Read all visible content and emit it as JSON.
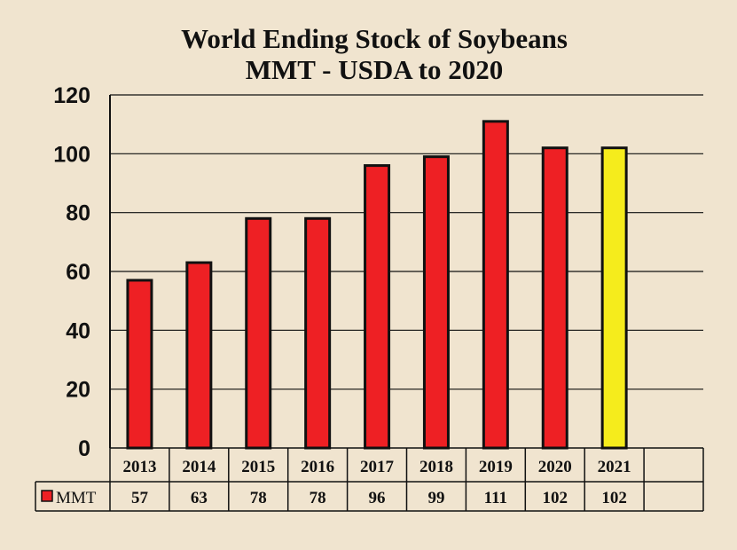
{
  "chart_data": {
    "type": "bar",
    "title": "World Ending Stock of Soybeans",
    "subtitle": "MMT - USDA to 2020",
    "categories": [
      "2013",
      "2014",
      "2015",
      "2016",
      "2017",
      "2018",
      "2019",
      "2020",
      "2021"
    ],
    "series": [
      {
        "name": "MMT",
        "values": [
          57,
          63,
          78,
          78,
          96,
          99,
          111,
          102,
          102
        ],
        "color": "#ee2024",
        "highlight_color": "#f5ec1c",
        "highlight_index": 8
      }
    ],
    "ylim": [
      0,
      120
    ],
    "yticks": [
      0,
      20,
      40,
      60,
      80,
      100,
      120
    ],
    "grid": true,
    "legend": "data-table-left",
    "data_table": true
  }
}
